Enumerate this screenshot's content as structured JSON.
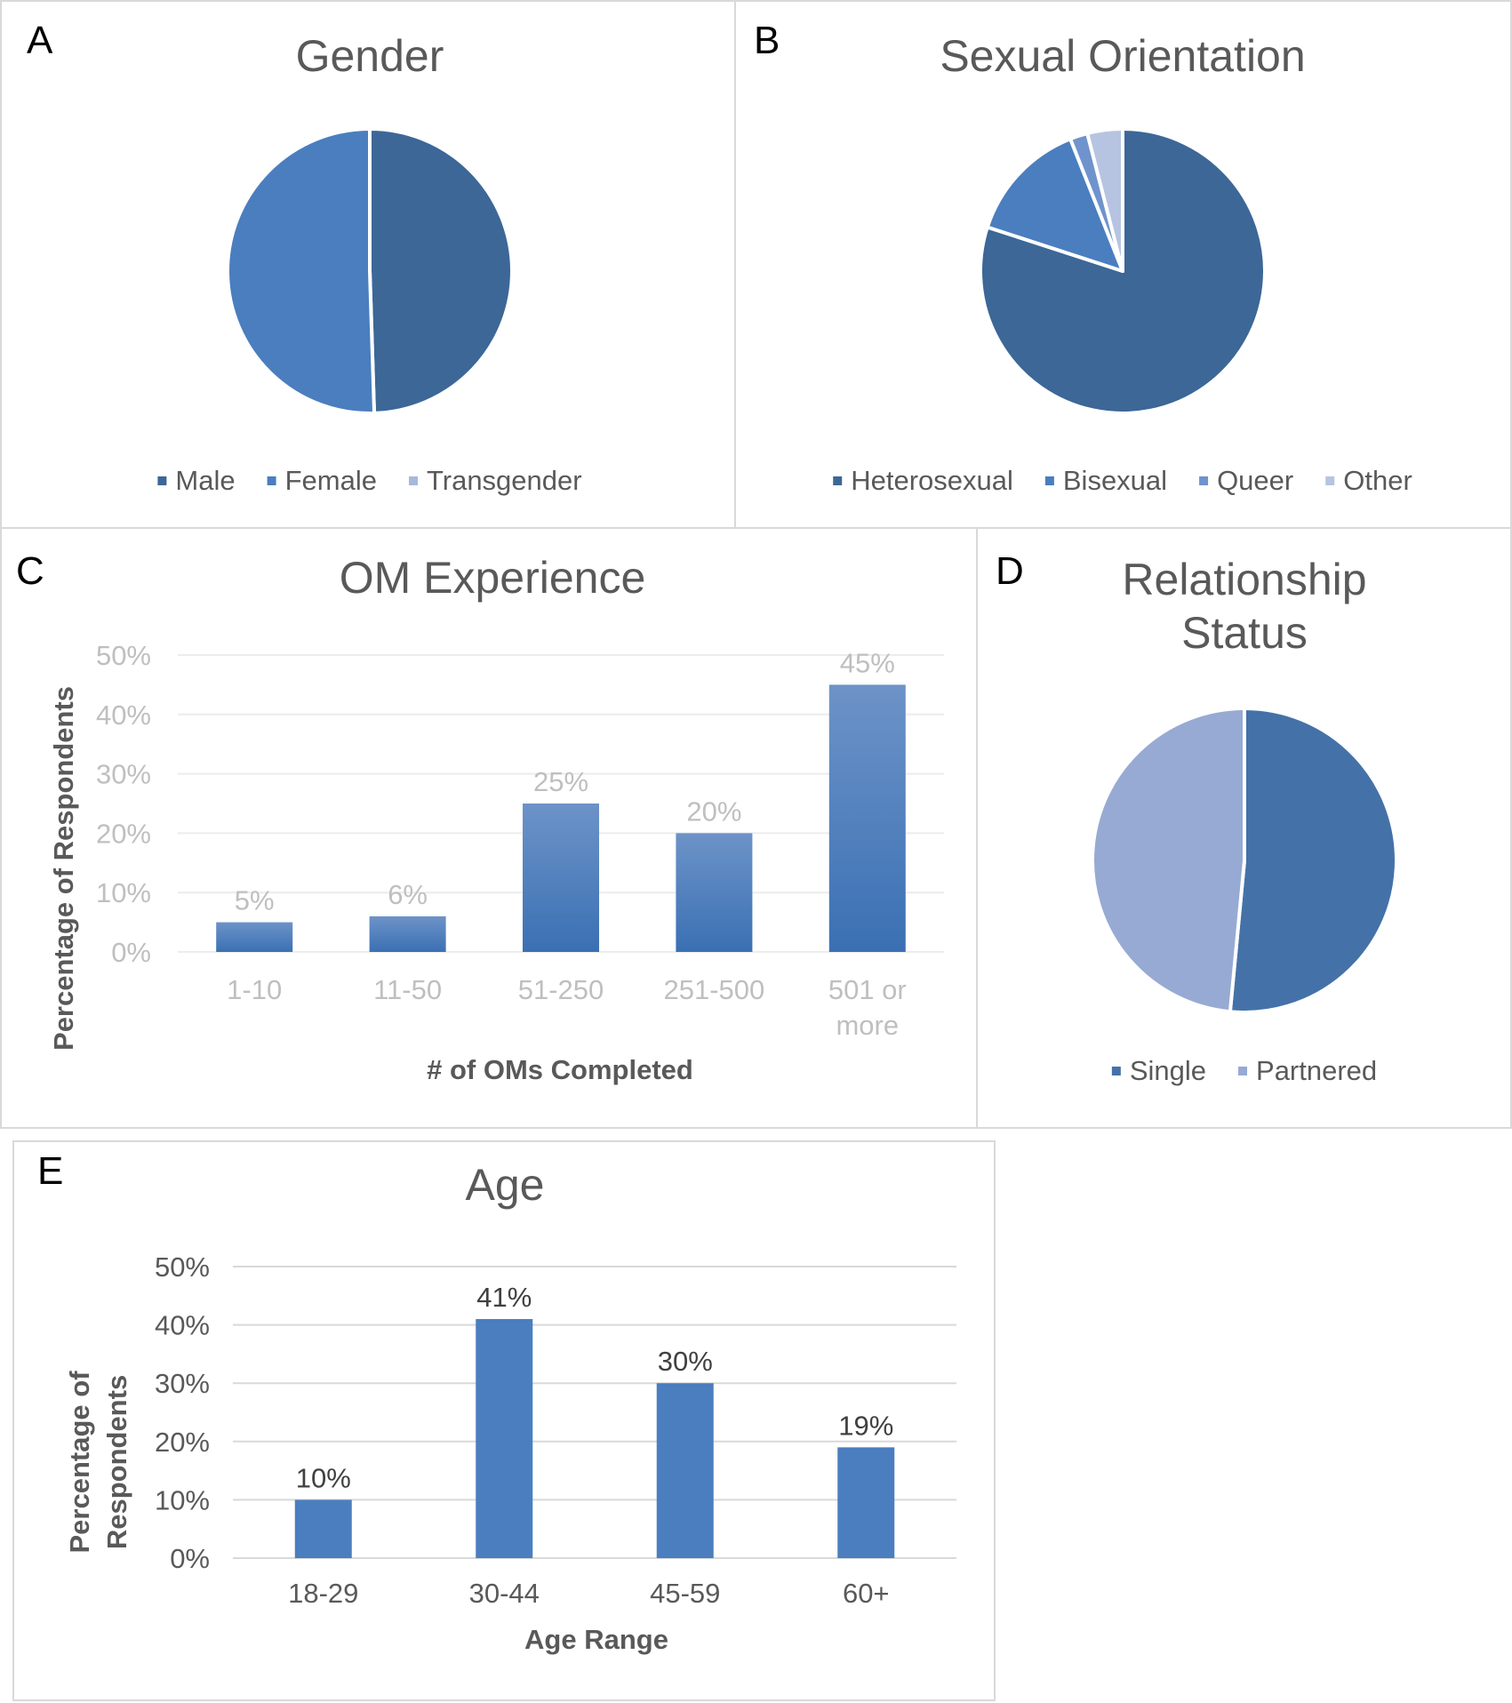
{
  "chart_data": [
    {
      "panel": "A",
      "type": "pie",
      "title": "Gender",
      "categories": [
        "Male",
        "Female",
        "Transgender"
      ],
      "values": [
        49.5,
        50.5,
        0
      ],
      "colors": [
        "#3c6797",
        "#4a7ebf",
        "#a5b9dc"
      ],
      "legend": "bottom"
    },
    {
      "panel": "B",
      "type": "pie",
      "title": "Sexual Orientation",
      "categories": [
        "Heterosexual",
        "Bisexual",
        "Queer",
        "Other"
      ],
      "values": [
        80,
        14,
        2,
        4
      ],
      "colors": [
        "#3c6797",
        "#4a7ebf",
        "#6f93cc",
        "#b6c4e1"
      ],
      "legend": "bottom"
    },
    {
      "panel": "C",
      "type": "bar",
      "title": "OM Experience",
      "categories": [
        "1-10",
        "11-50",
        "51-250",
        "251-500",
        "501 or more"
      ],
      "category_lines": [
        [
          "1-10"
        ],
        [
          "11-50"
        ],
        [
          "51-250"
        ],
        [
          "251-500"
        ],
        [
          "501 or",
          "more"
        ]
      ],
      "values": [
        5,
        6,
        25,
        20,
        45
      ],
      "data_labels": [
        "5%",
        "6%",
        "25%",
        "20%",
        "45%"
      ],
      "xlabel": "# of OMs Completed",
      "ylabel": "Percentage of Respondents",
      "ylim": [
        0,
        50
      ],
      "yticks": [
        "0%",
        "10%",
        "20%",
        "30%",
        "40%",
        "50%"
      ],
      "grid": true,
      "bar_color": "#4a7ebf"
    },
    {
      "panel": "D",
      "type": "pie",
      "title": "Relationship Status",
      "title_lines": [
        "Relationship",
        "Status"
      ],
      "categories": [
        "Single",
        "Partnered"
      ],
      "values": [
        51.5,
        48.5
      ],
      "colors": [
        "#4472a8",
        "#97aad3"
      ],
      "legend": "bottom"
    },
    {
      "panel": "E",
      "type": "bar",
      "title": "Age",
      "categories": [
        "18-29",
        "30-44",
        "45-59",
        "60+"
      ],
      "values": [
        10,
        41,
        30,
        19
      ],
      "data_labels": [
        "10%",
        "41%",
        "30%",
        "19%"
      ],
      "xlabel": "Age Range",
      "ylabel": "Percentage of Respondents",
      "ylabel_lines": [
        "Percentage of",
        "Respondents"
      ],
      "ylim": [
        0,
        50
      ],
      "yticks": [
        "0%",
        "10%",
        "20%",
        "30%",
        "40%",
        "50%"
      ],
      "grid": true,
      "bar_color": "#4a7ebf"
    }
  ]
}
